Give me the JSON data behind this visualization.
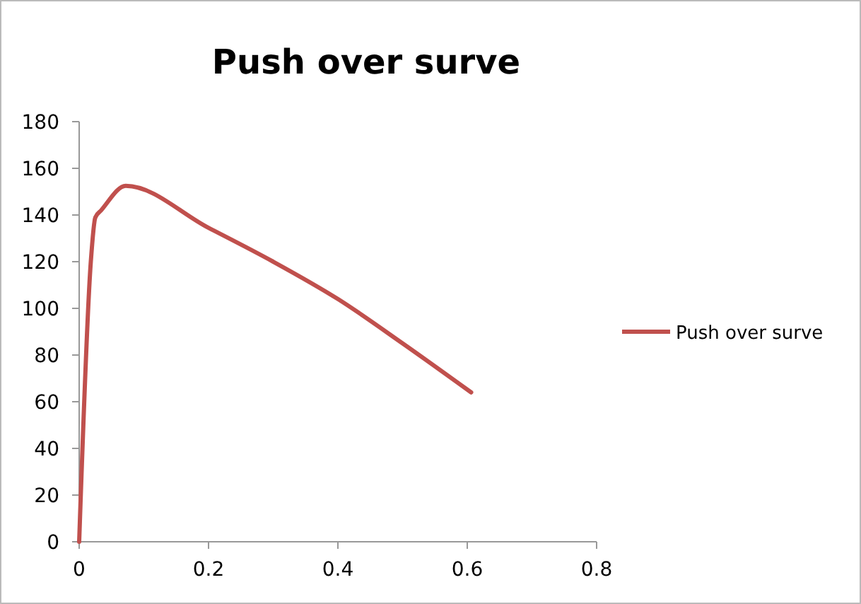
{
  "chart_data": {
    "type": "line",
    "title": "Push over surve",
    "series": [
      {
        "name": "Push over surve",
        "color": "#c0504d",
        "x": [
          0,
          0.018,
          0.025,
          0.034,
          0.072,
          0.2,
          0.3,
          0.4,
          0.5,
          0.606
        ],
        "values": [
          0,
          120,
          139,
          142,
          152.5,
          134.5,
          120,
          104,
          85,
          64
        ]
      }
    ],
    "xlim": [
      0,
      0.8
    ],
    "xticks": [
      0,
      0.2,
      0.4,
      0.6,
      0.8
    ],
    "ylim": [
      0,
      180
    ],
    "yticks": [
      0,
      20,
      40,
      60,
      80,
      100,
      120,
      140,
      160,
      180
    ],
    "grid": false,
    "legend": "right",
    "marker": "none",
    "line_style": "solid"
  }
}
